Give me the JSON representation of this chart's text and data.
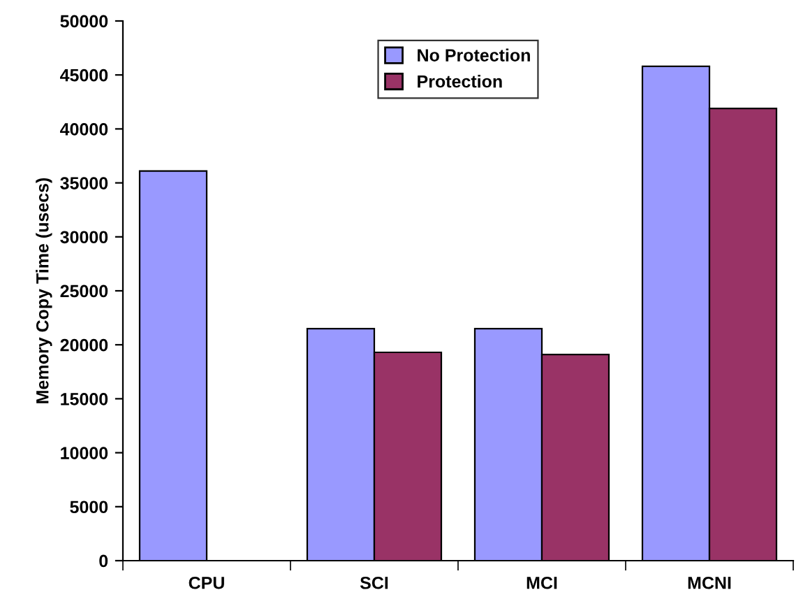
{
  "chart_data": {
    "type": "bar",
    "ylabel": "Memory Copy Time (usecs)",
    "categories": [
      "CPU",
      "SCI",
      "MCI",
      "MCNI"
    ],
    "series": [
      {
        "name": "No Protection",
        "color": "#9999ff",
        "values": [
          36100,
          21500,
          21500,
          45800
        ]
      },
      {
        "name": "Protection",
        "color": "#993366",
        "values": [
          null,
          19300,
          19100,
          41900
        ]
      }
    ],
    "ylim": [
      0,
      50000
    ],
    "yticks": [
      0,
      5000,
      10000,
      15000,
      20000,
      25000,
      30000,
      35000,
      40000,
      45000,
      50000
    ],
    "grid": false,
    "legend": "top"
  }
}
